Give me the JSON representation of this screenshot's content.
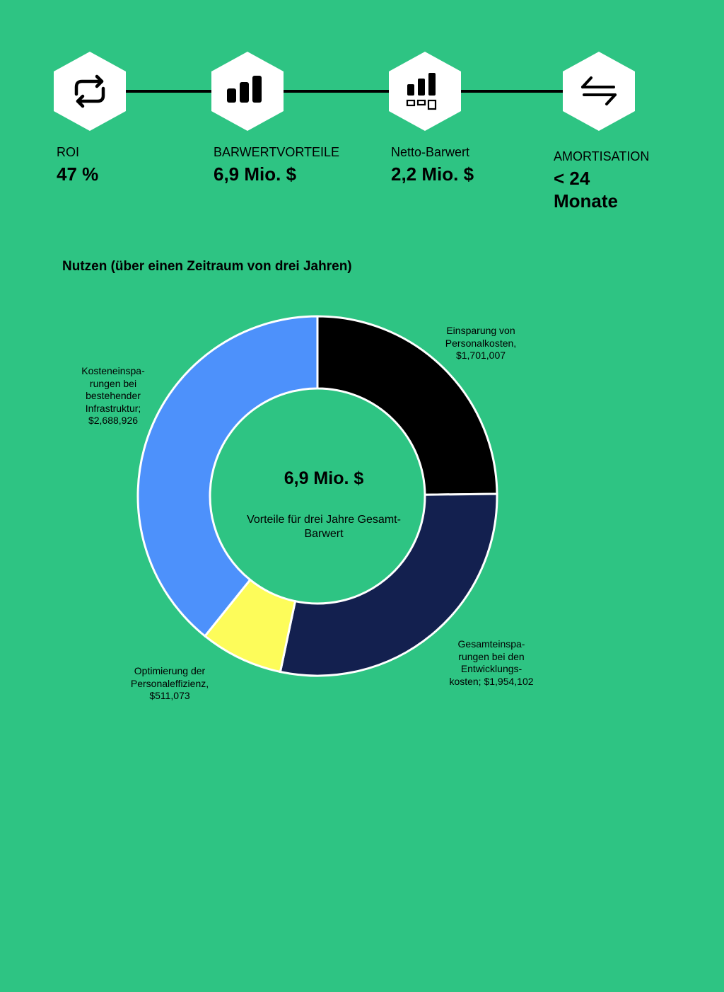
{
  "metrics": [
    {
      "label": "ROI",
      "value": "47 %",
      "icon": "repeat-icon"
    },
    {
      "label": "BARWERTVORTEILE",
      "value": "6,9 Mio. $",
      "icon": "bar-chart-icon"
    },
    {
      "label": "Netto-Barwert",
      "value": "2,2 Mio. $",
      "icon": "bar-chart-boxes-icon"
    },
    {
      "label": "AMORTISATION",
      "value": "< 24 Monate",
      "icon": "exchange-arrows-icon"
    }
  ],
  "chart_data": {
    "type": "pie",
    "title": "Nutzen (über einen Zeitraum von drei Jahren)",
    "center_value": "6,9 Mio. $",
    "center_label": "Vorteile für drei Jahre Gesamt-Barwert",
    "slices": [
      {
        "label": "Einsparung von Personalkosten,",
        "value_text": "$1,701,007",
        "value": 1701007,
        "color": "#000000"
      },
      {
        "label": "Gesamteinspa-rungen bei den Entwicklungs-kosten;",
        "value_text": "$1,954,102",
        "value": 1954102,
        "color": "#13204f"
      },
      {
        "label": "Optimierung der Personaleffizienz,",
        "value_text": "$511,073",
        "value": 511073,
        "color": "#fdfc5a"
      },
      {
        "label": "Kosteneinspa-rungen bei bestehender Infrastruktur;",
        "value_text": "$2,688,926",
        "value": 2688926,
        "color": "#4d91fb"
      }
    ]
  },
  "labels": {
    "slice0": [
      "Einsparung von",
      "Personalkosten,",
      "$1,701,007"
    ],
    "slice1": [
      "Gesamteinspa-",
      "rungen bei den",
      "Entwicklungs-",
      "kosten; $1,954,102"
    ],
    "slice2": [
      "Optimierung der",
      "Personaleffizienz,",
      "$511,073"
    ],
    "slice3": [
      "Kosteneinspa-",
      "rungen bei",
      "bestehender",
      "Infrastruktur;",
      "$2,688,926"
    ],
    "metric3_value_lines": [
      "< 24",
      "Monate"
    ]
  }
}
